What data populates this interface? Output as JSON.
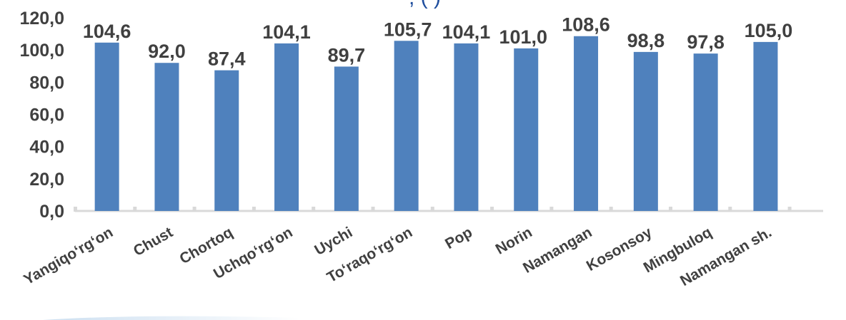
{
  "chart_data": {
    "type": "bar",
    "title_fragment": ", (      )",
    "categories": [
      "Yangiqo‘rg‘on",
      "Chust",
      "Chortoq",
      "Uchqo‘rg‘on",
      "Uychi",
      "To‘raqo‘rg‘on",
      "Pop",
      "Norin",
      "Namangan",
      "Kosonsoy",
      "Mingbuloq",
      "Namangan sh."
    ],
    "values": [
      104.6,
      92.0,
      87.4,
      104.1,
      89.7,
      105.7,
      104.1,
      101.0,
      108.6,
      98.8,
      97.8,
      105.0
    ],
    "value_labels": [
      "104,6",
      "92,0",
      "87,4",
      "104,1",
      "89,7",
      "105,7",
      "104,1",
      "101,0",
      "108,6",
      "98,8",
      "97,8",
      "105,0"
    ],
    "yticks": [
      "0,0",
      "20,0",
      "40,0",
      "60,0",
      "80,0",
      "100,0",
      "120,0"
    ],
    "ylim": [
      0,
      120
    ],
    "xlabel": "",
    "ylabel": "",
    "grid": false,
    "legend": "none",
    "bar_color": "#4f81bd",
    "label_color": "#404040",
    "axis_color": "#d9d9d9"
  }
}
